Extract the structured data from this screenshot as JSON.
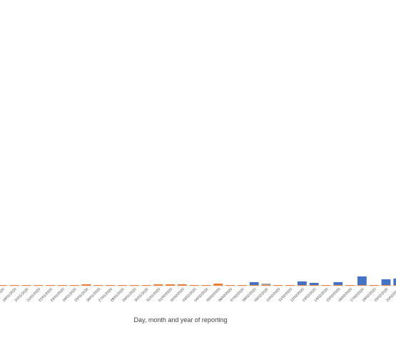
{
  "chart_data": {
    "type": "bar",
    "stacked": true,
    "x_label": "Day, month and year of reporting",
    "categories": [
      "18/01/2020",
      "19/01/2020",
      "20/01/2020",
      "21/01/2020",
      "22/01/2020",
      "23/01/2020",
      "24/01/2020",
      "25/01/2020",
      "26/01/2020",
      "27/01/2020",
      "28/01/2020",
      "29/01/2020",
      "30/01/2020",
      "31/01/2020",
      "01/02/2020",
      "02/02/2020",
      "03/02/2020",
      "04/02/2020",
      "05/02/2020",
      "06/02/2020",
      "07/02/2020",
      "08/02/2020",
      "09/02/2020",
      "10/02/2020",
      "11/02/2020",
      "12/02/2020",
      "13/02/2020",
      "14/02/2020",
      "15/02/2020",
      "16/02/2020",
      "17/02/2020",
      "18/02/2020",
      "19/02/2020",
      "20/02/2020"
    ],
    "series": [
      {
        "color": "#ed7d31",
        "values": [
          1,
          1,
          1,
          1,
          1,
          1,
          1,
          2,
          1,
          1,
          1,
          1,
          1,
          2,
          2,
          2,
          1,
          1,
          3,
          1,
          1,
          1,
          1,
          1,
          1,
          1,
          1,
          1,
          1,
          1,
          1,
          1,
          1,
          1
        ]
      },
      {
        "color": "#4472c4",
        "values": [
          0,
          0,
          0,
          0,
          0,
          0,
          0,
          0,
          0,
          0,
          0,
          0,
          0,
          0,
          0,
          0,
          0,
          0,
          0,
          0,
          0,
          4,
          0,
          0,
          0,
          5,
          3,
          0,
          4,
          0,
          12,
          0,
          8,
          9
        ]
      },
      {
        "color": "#a5a5a5",
        "values": [
          0,
          0,
          0,
          0,
          0,
          0,
          0,
          0,
          0,
          0,
          0,
          0,
          0,
          0,
          0,
          0,
          0,
          0,
          0,
          0,
          0,
          0,
          2,
          0,
          0,
          0,
          0,
          0,
          0,
          0,
          0,
          0,
          0,
          0
        ]
      }
    ],
    "ylim": [
      0,
      400
    ]
  }
}
